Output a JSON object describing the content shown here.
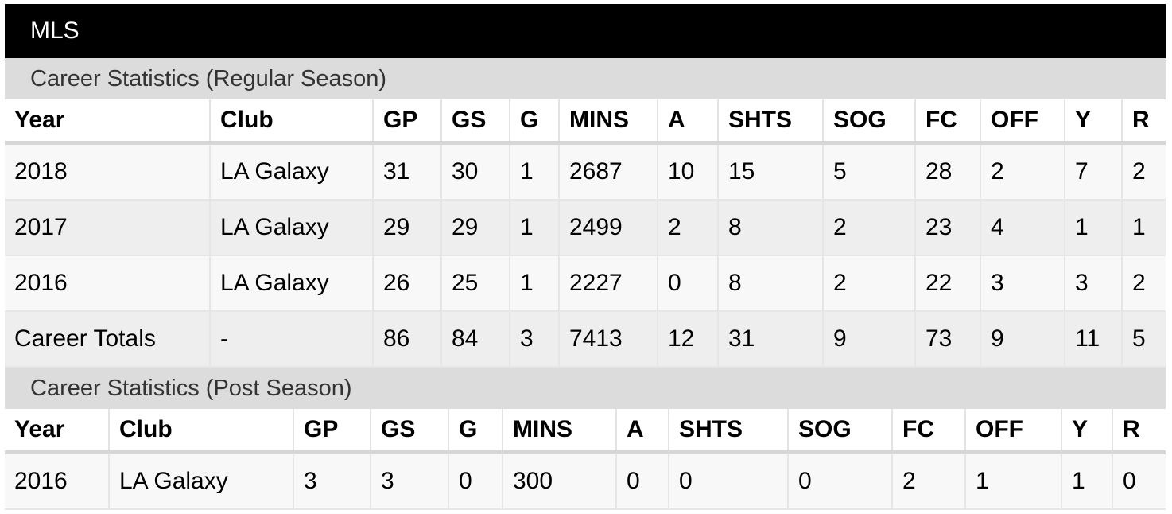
{
  "league": "MLS",
  "regular": {
    "title": "Career Statistics (Regular Season)",
    "headers": [
      "Year",
      "Club",
      "GP",
      "GS",
      "G",
      "MINS",
      "A",
      "SHTS",
      "SOG",
      "FC",
      "OFF",
      "Y",
      "R"
    ],
    "rows": [
      [
        "2018",
        "LA Galaxy",
        "31",
        "30",
        "1",
        "2687",
        "10",
        "15",
        "5",
        "28",
        "2",
        "7",
        "2"
      ],
      [
        "2017",
        "LA Galaxy",
        "29",
        "29",
        "1",
        "2499",
        "2",
        "8",
        "2",
        "23",
        "4",
        "1",
        "1"
      ],
      [
        "2016",
        "LA Galaxy",
        "26",
        "25",
        "1",
        "2227",
        "0",
        "8",
        "2",
        "22",
        "3",
        "3",
        "2"
      ],
      [
        "Career Totals",
        "-",
        "86",
        "84",
        "3",
        "7413",
        "12",
        "31",
        "9",
        "73",
        "9",
        "11",
        "5"
      ]
    ]
  },
  "post": {
    "title": "Career Statistics (Post Season)",
    "headers": [
      "Year",
      "Club",
      "GP",
      "GS",
      "G",
      "MINS",
      "A",
      "SHTS",
      "SOG",
      "FC",
      "OFF",
      "Y",
      "R"
    ],
    "rows": [
      [
        "2016",
        "LA Galaxy",
        "3",
        "3",
        "0",
        "300",
        "0",
        "0",
        "0",
        "2",
        "1",
        "1",
        "0"
      ]
    ]
  }
}
